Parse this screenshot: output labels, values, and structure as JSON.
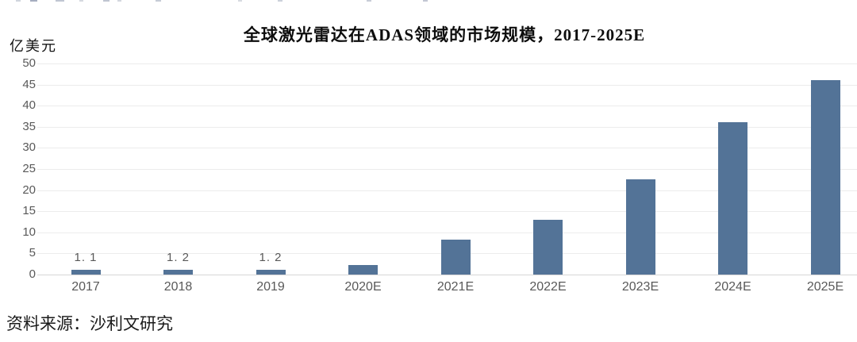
{
  "page": {
    "unit_label": "亿美元",
    "source_note": "资料来源：沙利文研究"
  },
  "chart_data": {
    "type": "bar",
    "title": "全球激光雷达在ADAS领域的市场规模，2017-2025E",
    "xlabel": "",
    "ylabel": "亿美元",
    "categories": [
      "2017",
      "2018",
      "2019",
      "2020E",
      "2021E",
      "2022E",
      "2023E",
      "2024E",
      "2025E"
    ],
    "values": [
      1.1,
      1.2,
      1.2,
      2.2,
      8.3,
      13,
      22.5,
      36,
      46
    ],
    "bar_labels": [
      "1. 1",
      "1. 2",
      "1. 2",
      "",
      "",
      "",
      "",
      "",
      ""
    ],
    "ylim": [
      0,
      50
    ],
    "yticks": [
      0,
      5,
      10,
      15,
      20,
      25,
      30,
      35,
      40,
      45,
      50
    ],
    "grid": true,
    "legend": "none",
    "bar_color": "#537397",
    "gridline_color": "#ececec",
    "axis_text_color": "#595959",
    "source": "沙利文研究"
  }
}
